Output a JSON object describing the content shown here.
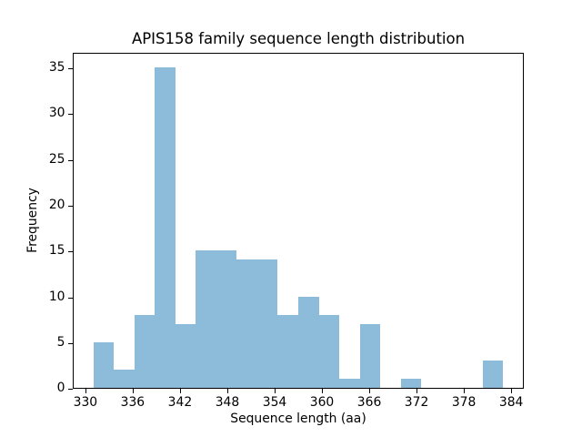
{
  "chart_data": {
    "type": "bar",
    "subtype": "histogram",
    "title": "APIS158 family sequence length distribution",
    "xlabel": "Sequence length (aa)",
    "ylabel": "Frequency",
    "bin_edges": [
      331.0,
      333.6,
      336.2,
      338.8,
      341.4,
      344.0,
      346.6,
      349.2,
      351.8,
      354.4,
      357.0,
      359.6,
      362.2,
      364.8,
      367.4,
      370.0,
      372.6,
      375.2,
      377.8,
      380.4,
      383.0
    ],
    "frequencies": [
      5,
      2,
      8,
      35,
      7,
      15,
      15,
      14,
      14,
      8,
      10,
      8,
      1,
      7,
      0,
      1,
      0,
      0,
      0,
      3
    ],
    "xticks": [
      330,
      336,
      342,
      348,
      354,
      360,
      366,
      372,
      378,
      384
    ],
    "yticks": [
      0,
      5,
      10,
      15,
      20,
      25,
      30,
      35
    ],
    "xlim": [
      328.4,
      385.6
    ],
    "ylim": [
      0,
      36.75
    ],
    "bar_color": "#8dbbda",
    "axis_color": "#000000",
    "text_color": "#000000",
    "background_color": "#ffffff",
    "grid": false,
    "legend": "none"
  }
}
